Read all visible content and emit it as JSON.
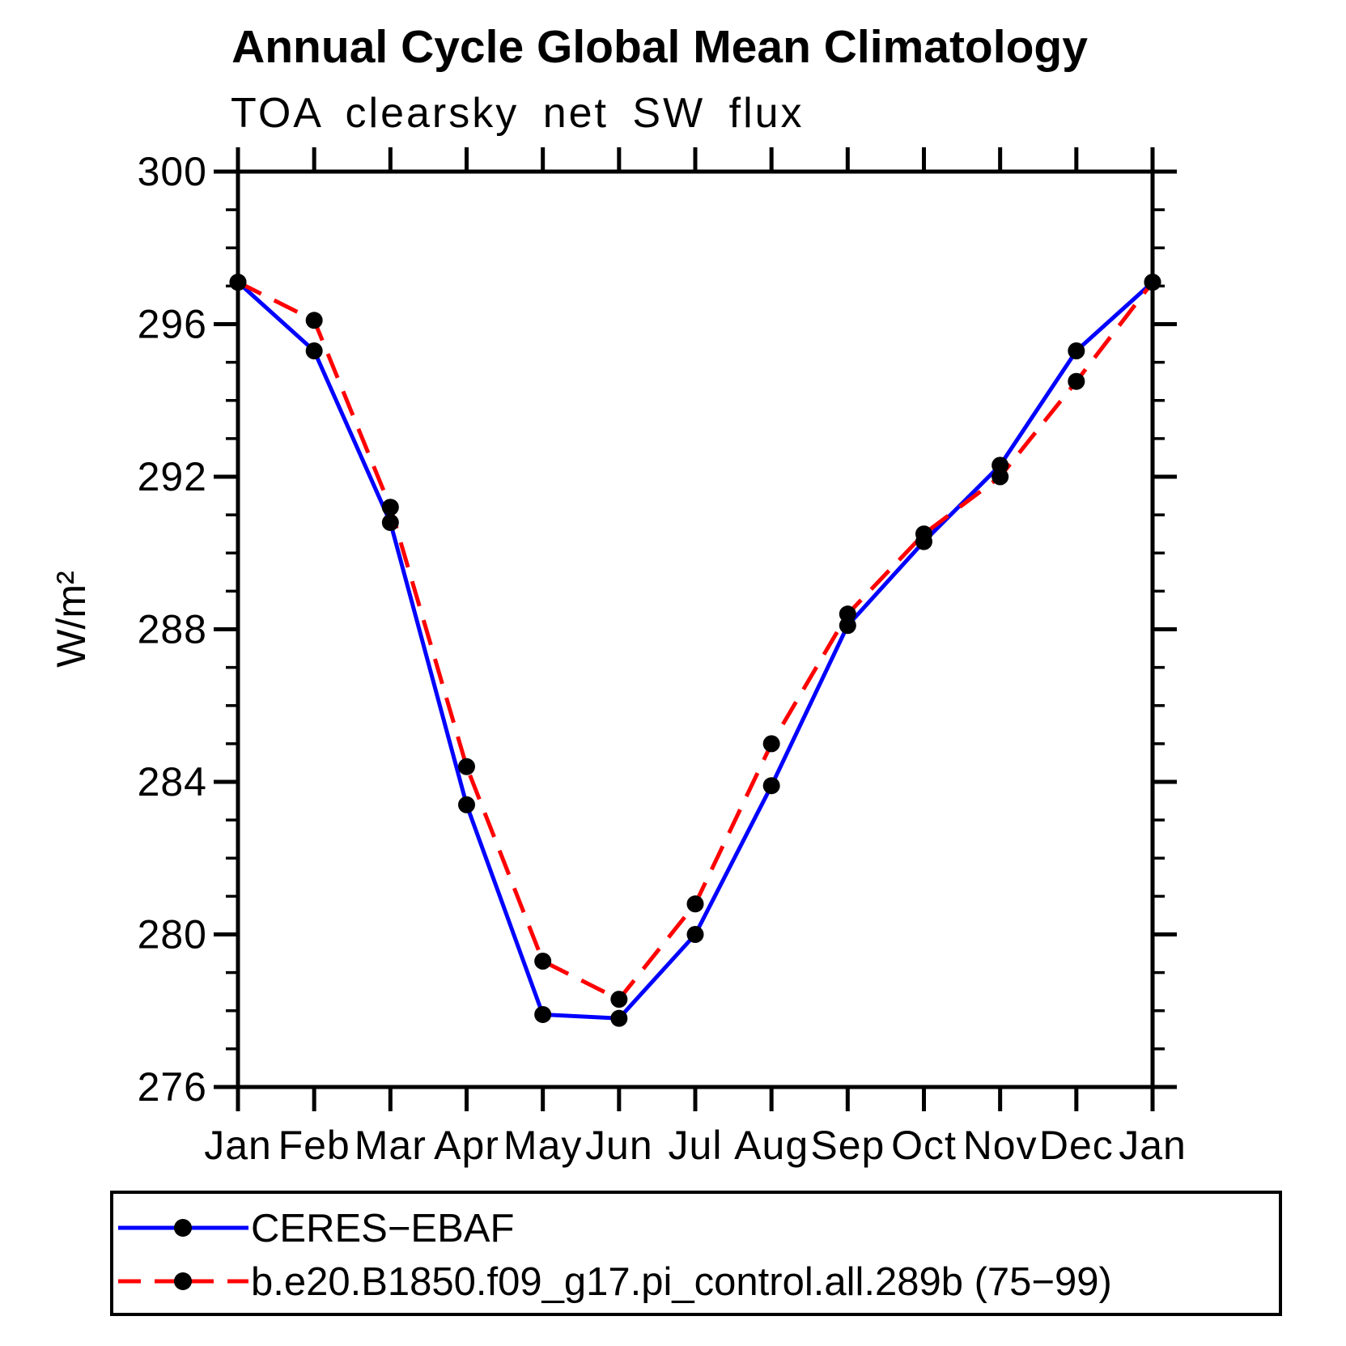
{
  "header": {
    "title": "Annual Cycle Global Mean Climatology",
    "subtitle": "TOA clearsky net SW flux"
  },
  "chart_data": {
    "type": "line",
    "title": "Annual Cycle Global Mean Climatology",
    "subtitle": "TOA clearsky net SW flux",
    "xlabel": "",
    "ylabel": "W/m²",
    "categories": [
      "Jan",
      "Feb",
      "Mar",
      "Apr",
      "May",
      "Jun",
      "Jul",
      "Aug",
      "Sep",
      "Oct",
      "Nov",
      "Dec",
      "Jan"
    ],
    "ylim": [
      276,
      300
    ],
    "ytick_step": 4,
    "yminor_step": 1,
    "ytick_labels": [
      "276",
      "280",
      "284",
      "288",
      "292",
      "296",
      "300"
    ],
    "grid": false,
    "legend_position": "bottom-box",
    "axis_color": "#000000",
    "marker_color": "#000000",
    "series": [
      {
        "name": "CERES−EBAF",
        "color": "#0000ff",
        "style": "solid",
        "marker": "filled-circle",
        "values": [
          297.1,
          295.3,
          290.8,
          283.4,
          277.9,
          277.8,
          280.0,
          283.9,
          288.1,
          290.3,
          292.3,
          295.3,
          297.1
        ]
      },
      {
        "name": "b.e20.B1850.f09_g17.pi_control.all.289b (75−99)",
        "color": "#ff0000",
        "style": "dashed",
        "marker": "filled-circle",
        "values": [
          297.1,
          296.1,
          291.2,
          284.4,
          279.3,
          278.3,
          280.8,
          285.0,
          288.4,
          290.5,
          292.0,
          294.5,
          297.1
        ]
      }
    ]
  }
}
